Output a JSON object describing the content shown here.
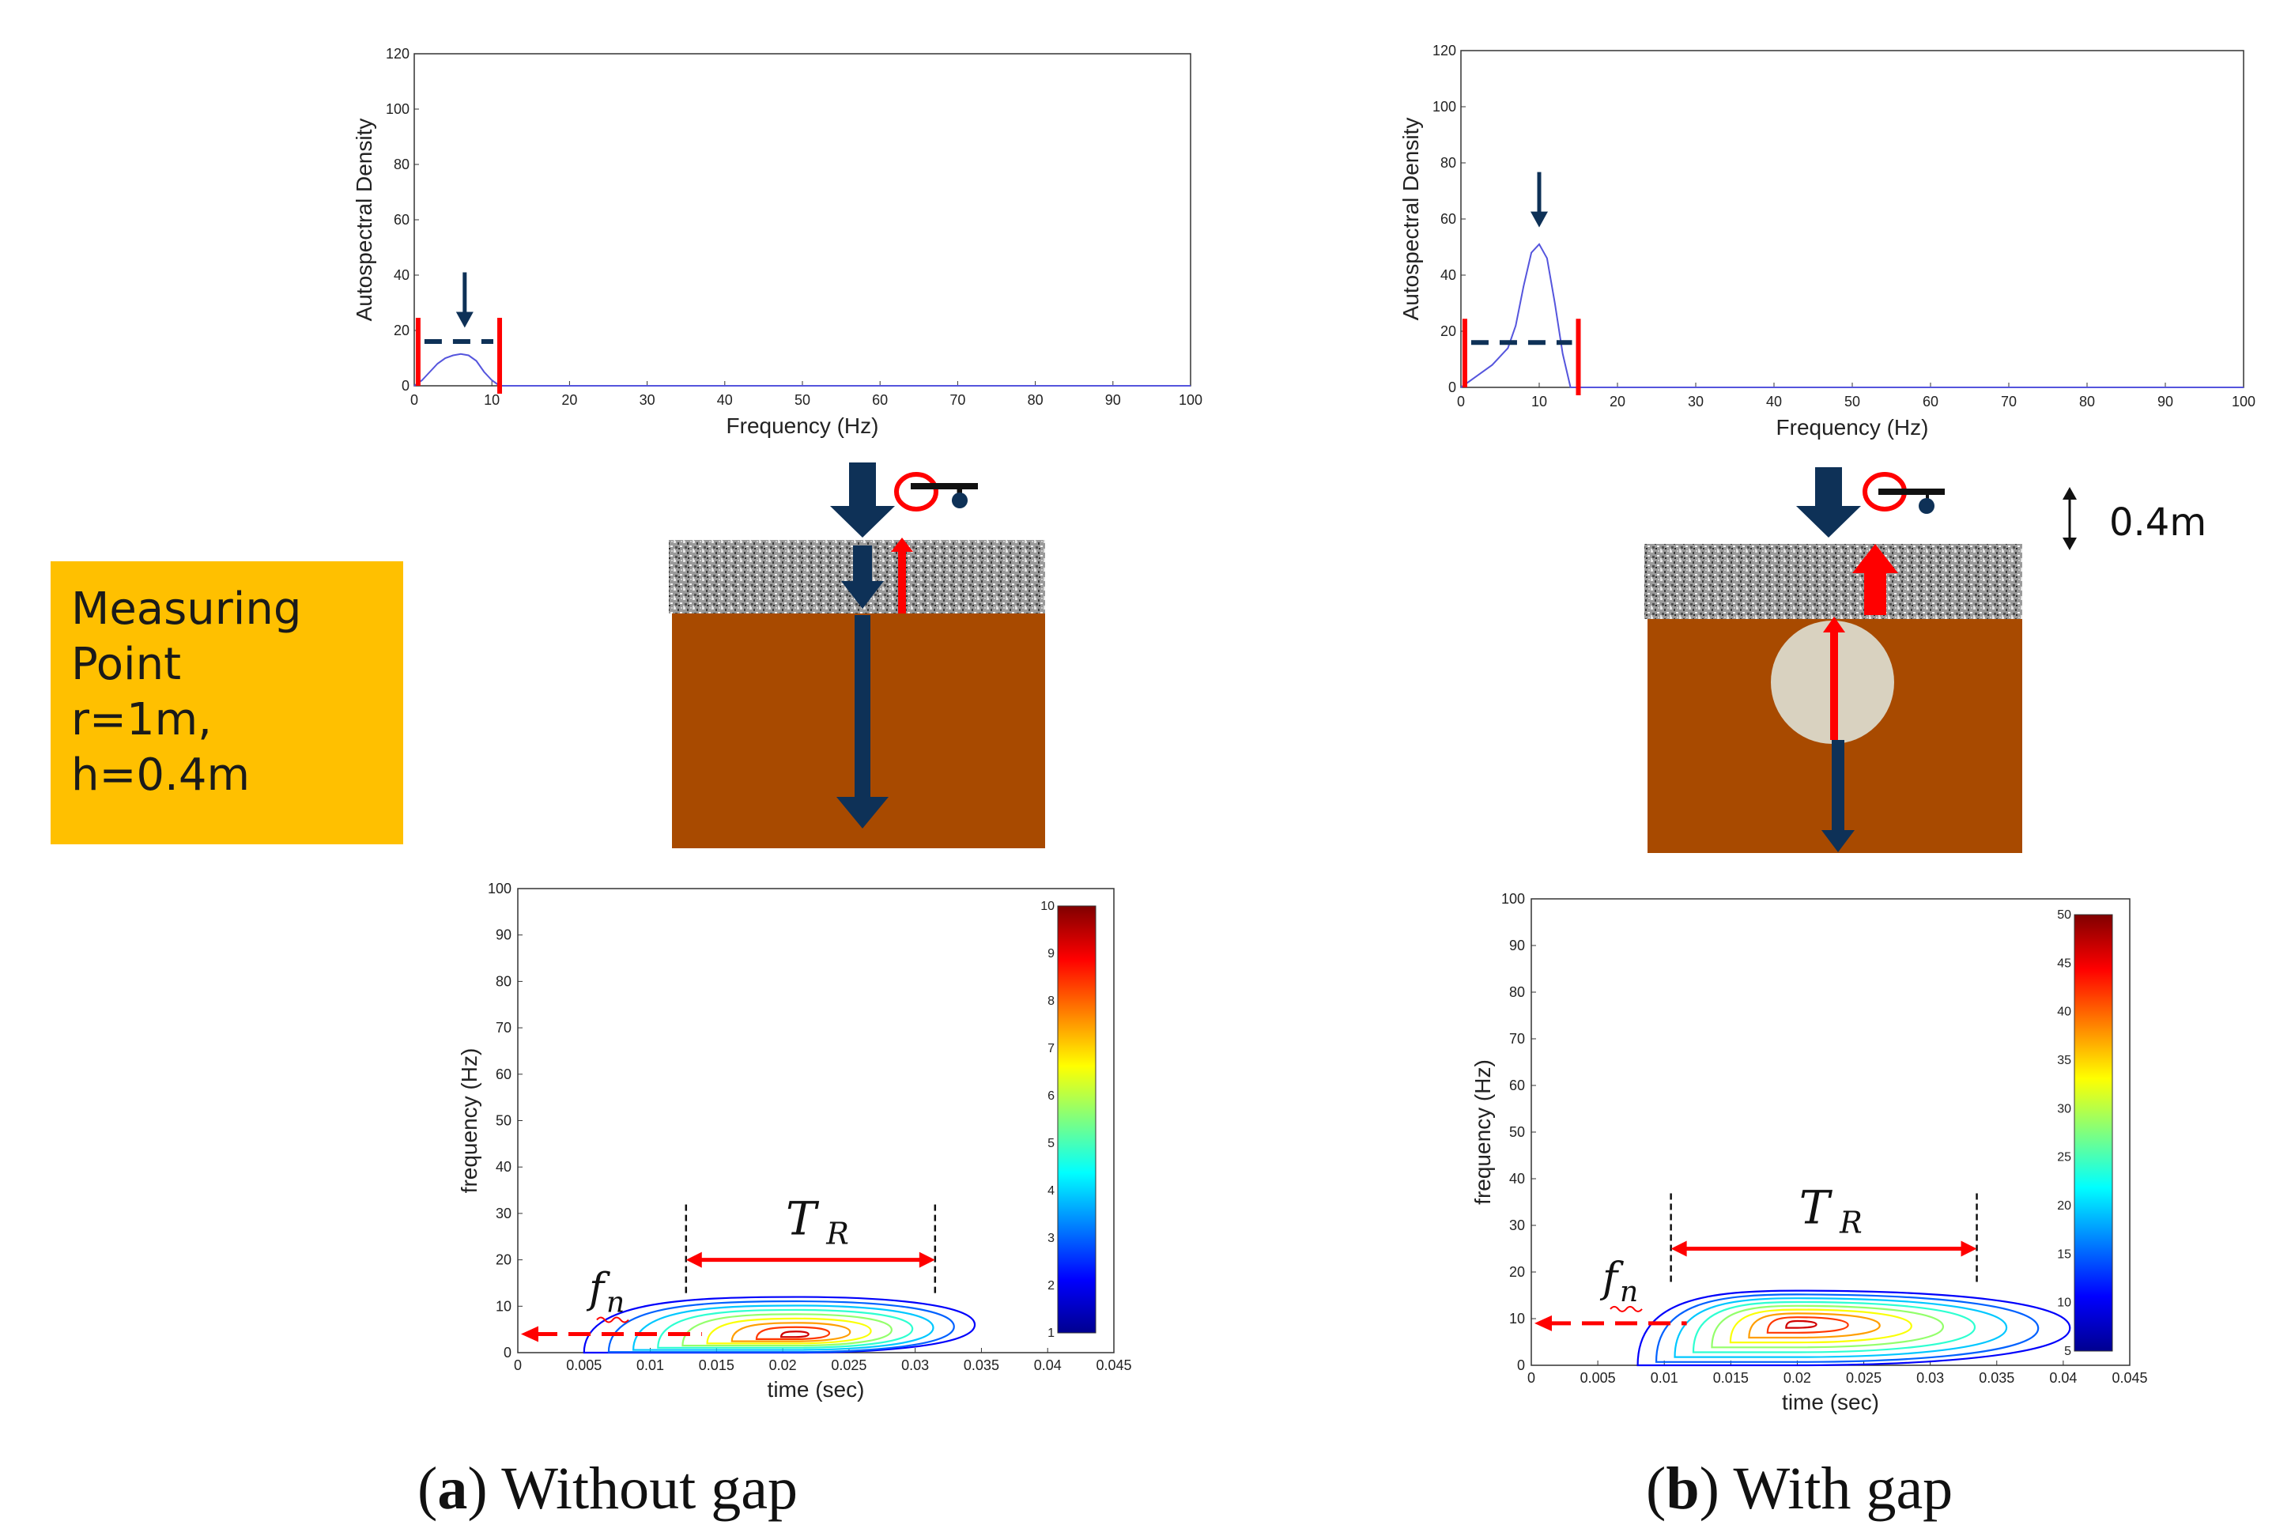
{
  "measuring_point": {
    "lines": [
      "Measuring",
      "Point",
      "r=1m,",
      "h=0.4m"
    ]
  },
  "dimension_label": "0.4m",
  "colors": {
    "soil": "#A84A00",
    "gap": "#D9D2C0",
    "arrow_dark": "#0E3157",
    "arrow_red": "#FF0000",
    "curve": "#5555DD",
    "box": "#FFC000"
  },
  "captions": {
    "a": {
      "letter": "a",
      "text": "Without gap"
    },
    "b": {
      "letter": "b",
      "text": "With gap"
    }
  },
  "symbols": {
    "tr": "T",
    "tr_sub": "R",
    "fn": "f",
    "fn_sub": "n"
  },
  "chart_data": [
    {
      "id": "a-spectrum",
      "type": "line",
      "title": "",
      "xlabel": "Frequency (Hz)",
      "ylabel": "Autospectral Density",
      "xlim": [
        0,
        100
      ],
      "ylim": [
        0,
        120
      ],
      "x_ticks": [
        0,
        10,
        20,
        30,
        40,
        50,
        60,
        70,
        80,
        90,
        100
      ],
      "y_ticks": [
        0,
        20,
        40,
        60,
        80,
        100,
        120
      ],
      "x": [
        0,
        1,
        2,
        3,
        4,
        5,
        6,
        7,
        8,
        9,
        10,
        11,
        12,
        100
      ],
      "y": [
        0,
        2,
        5,
        8,
        10,
        11,
        11.5,
        11,
        9,
        5,
        2,
        0,
        0,
        0
      ],
      "annotations": {
        "band_hz": [
          0.5,
          11
        ],
        "band_level": 16,
        "peak_hz": 6.5
      }
    },
    {
      "id": "b-spectrum",
      "type": "line",
      "title": "",
      "xlabel": "Frequency (Hz)",
      "ylabel": "Autospectral Density",
      "xlim": [
        0,
        100
      ],
      "ylim": [
        0,
        120
      ],
      "x_ticks": [
        0,
        10,
        20,
        30,
        40,
        50,
        60,
        70,
        80,
        90,
        100
      ],
      "y_ticks": [
        0,
        20,
        40,
        60,
        80,
        100,
        120
      ],
      "x": [
        0,
        2,
        4,
        6,
        7,
        8,
        9,
        10,
        11,
        12,
        13,
        14,
        100
      ],
      "y": [
        0,
        4,
        8,
        14,
        22,
        36,
        48,
        51,
        46,
        30,
        12,
        0,
        0
      ],
      "annotations": {
        "band_hz": [
          0.5,
          15
        ],
        "band_level": 16,
        "peak_hz": 10
      }
    },
    {
      "id": "a-timefreq",
      "type": "heatmap",
      "title": "",
      "xlabel": "time (sec)",
      "ylabel": "frequency (Hz)",
      "xlim": [
        0,
        0.045
      ],
      "ylim": [
        0,
        100
      ],
      "x_ticks": [
        "0",
        "0.005",
        "0.01",
        "0.015",
        "0.02",
        "0.025",
        "0.03",
        "0.035",
        "0.04",
        "0.045"
      ],
      "y_ticks": [
        0,
        10,
        20,
        30,
        40,
        50,
        60,
        70,
        80,
        90,
        100
      ],
      "colorbar": {
        "min": 1,
        "max": 10,
        "ticks": [
          1,
          2,
          3,
          4,
          5,
          6,
          7,
          8,
          9,
          10
        ]
      },
      "peak": {
        "time": 0.021,
        "freq": 4
      },
      "extent": {
        "time": [
          0.005,
          0.0345
        ],
        "freq": [
          0,
          12
        ]
      },
      "markers": {
        "tr_start": 0.0127,
        "tr_end": 0.0315,
        "tr_level": 20,
        "fn": 4
      }
    },
    {
      "id": "b-timefreq",
      "type": "heatmap",
      "title": "",
      "xlabel": "time (sec)",
      "ylabel": "frequency (Hz)",
      "xlim": [
        0,
        0.045
      ],
      "ylim": [
        0,
        100
      ],
      "x_ticks": [
        "0",
        "0.005",
        "0.01",
        "0.015",
        "0.02",
        "0.025",
        "0.03",
        "0.035",
        "0.04",
        "0.045"
      ],
      "y_ticks": [
        0,
        10,
        20,
        30,
        40,
        50,
        60,
        70,
        80,
        90,
        100
      ],
      "colorbar": {
        "min": 5,
        "max": 50,
        "ticks": [
          5,
          10,
          15,
          20,
          25,
          30,
          35,
          40,
          45,
          50
        ]
      },
      "peak": {
        "time": 0.02,
        "freq": 9
      },
      "extent": {
        "time": [
          0.008,
          0.0405
        ],
        "freq": [
          0,
          16
        ]
      },
      "markers": {
        "tr_start": 0.0105,
        "tr_end": 0.0335,
        "tr_level": 25,
        "fn": 9
      }
    }
  ]
}
